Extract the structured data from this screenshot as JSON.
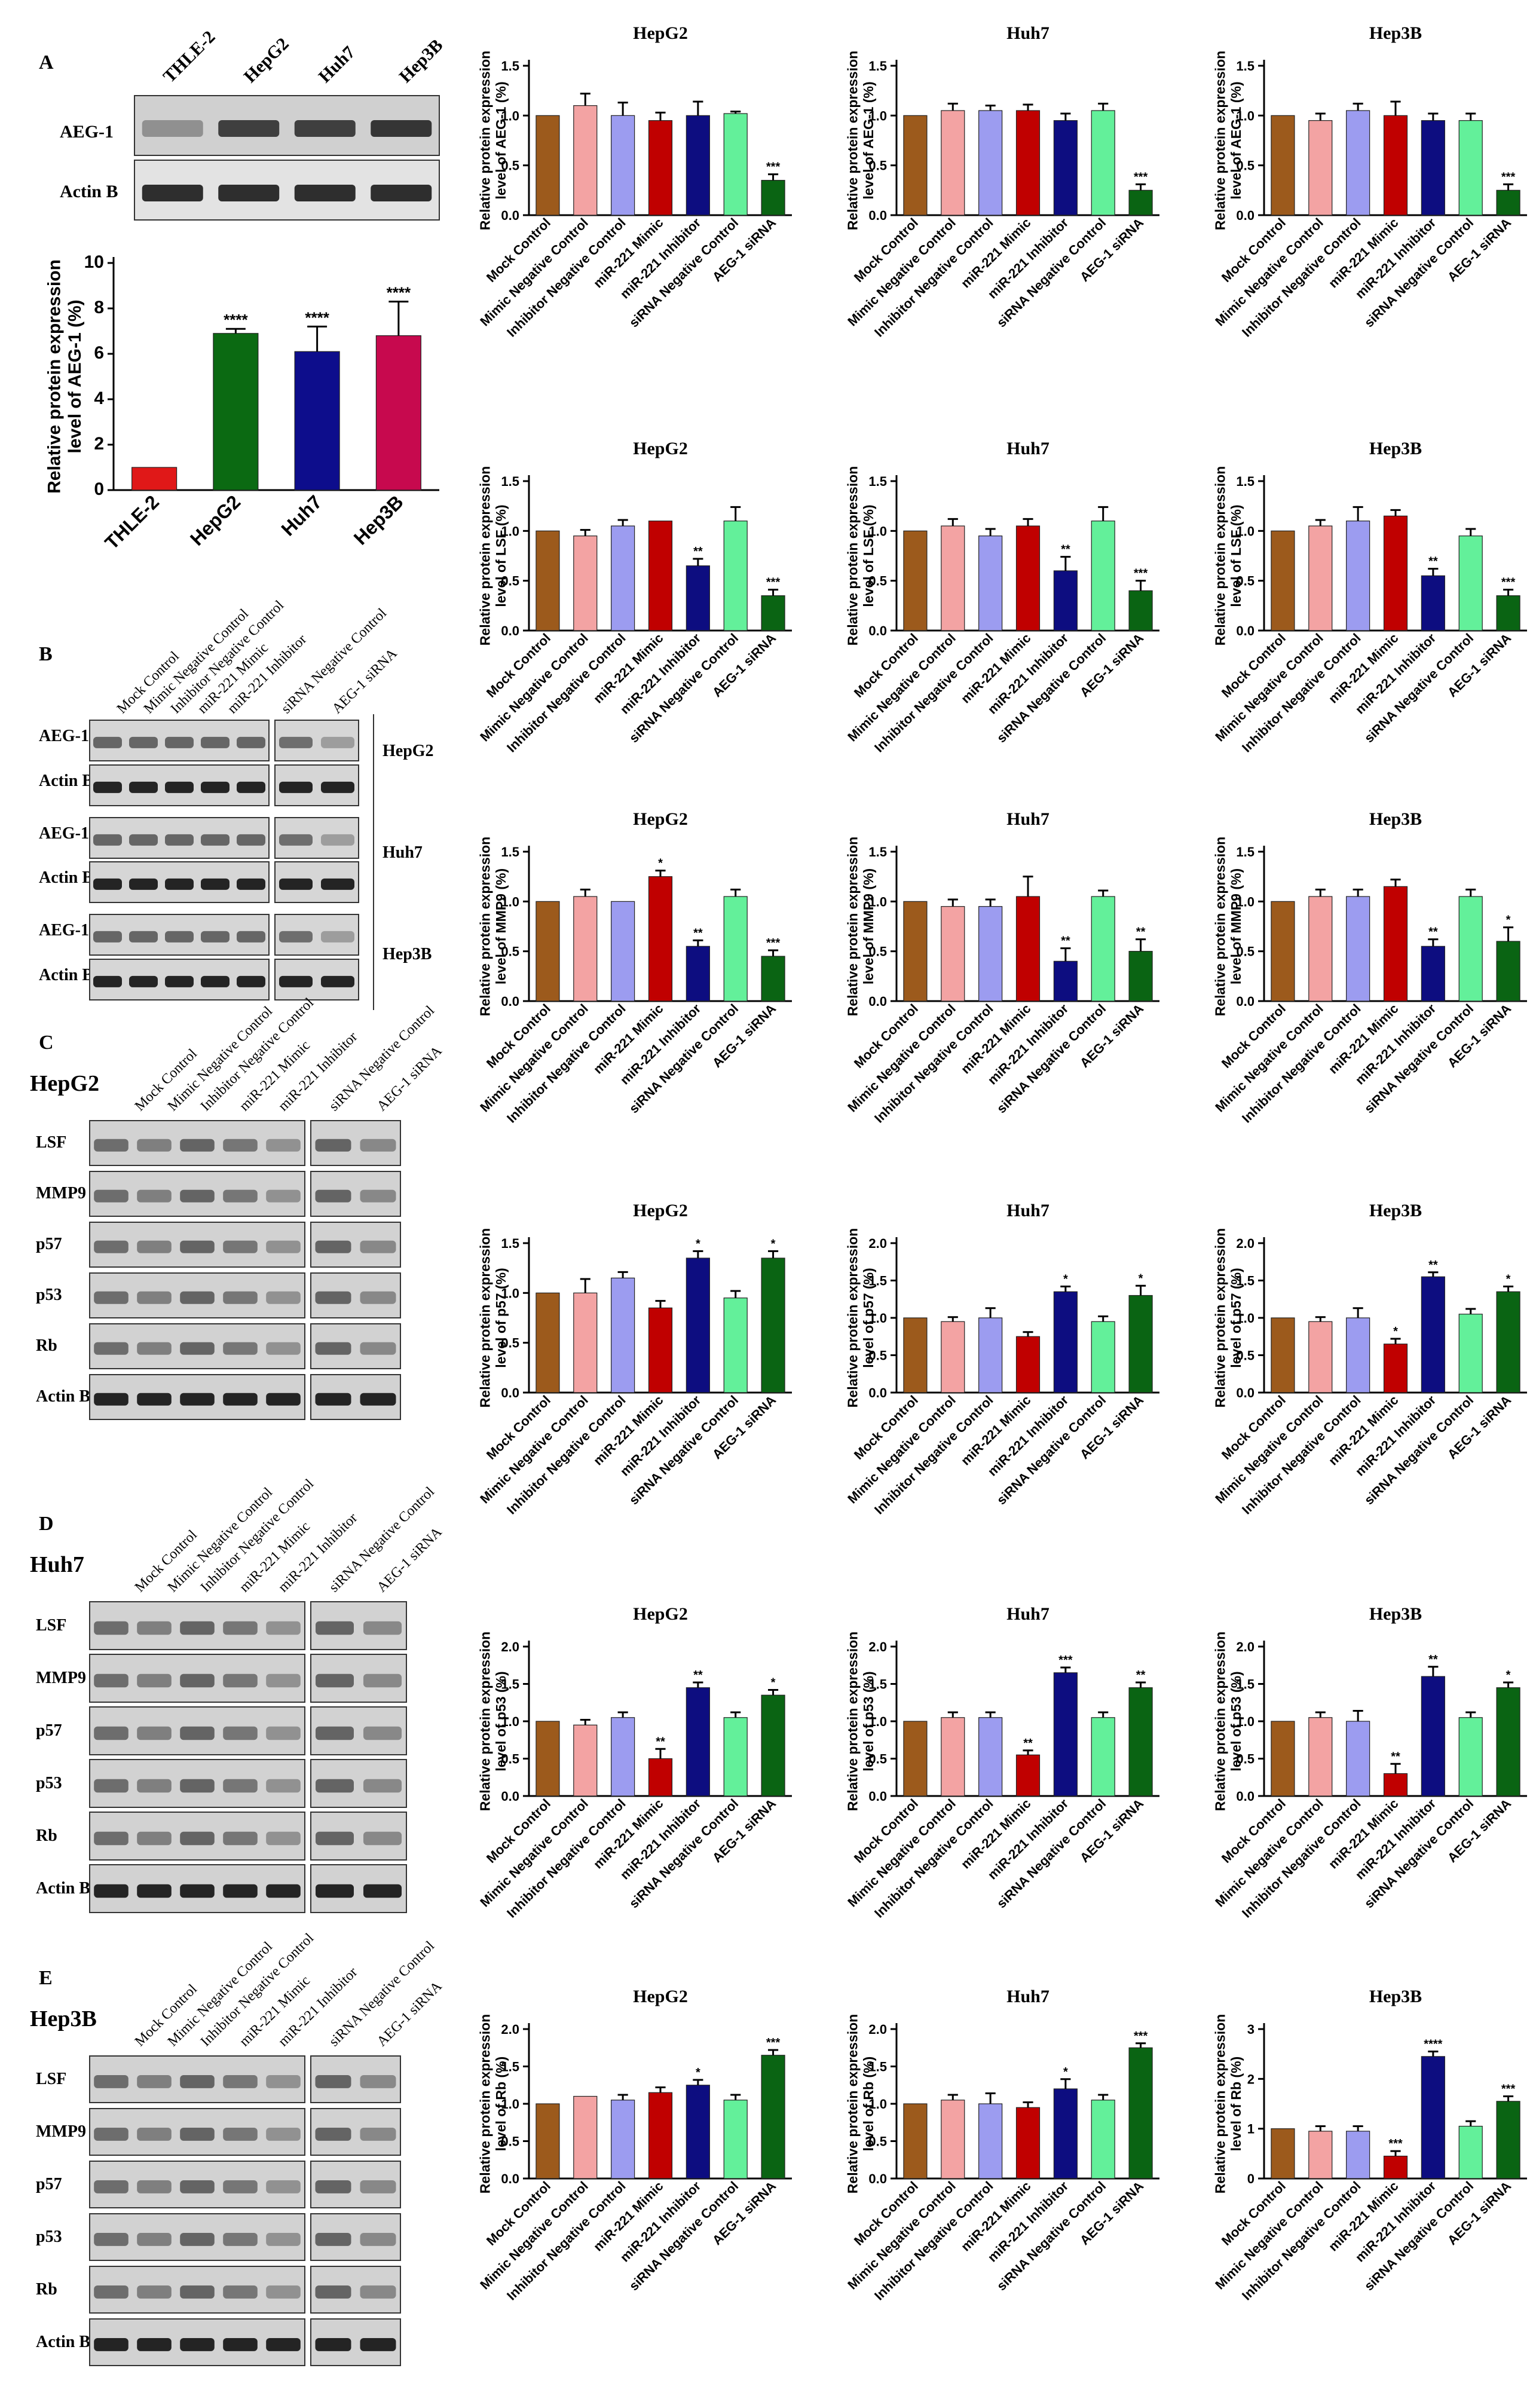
{
  "colors": {
    "mock": "#9c5a1c",
    "mimic_neg": "#f3a3a3",
    "inhib_neg": "#9c9cf0",
    "mimic": "#c00000",
    "inhibitor": "#0d0d80",
    "sirna_neg": "#63f09a",
    "sirna": "#0a6413",
    "thle2": "#e01818",
    "hepg2": "#0b6a12",
    "huh7": "#0d0d8c",
    "hep3b": "#c7094e"
  },
  "panels": {
    "A": {
      "letter": "A",
      "lanes": [
        "THLE-2",
        "HepG2",
        "Huh7",
        "Hep3B"
      ],
      "rows": [
        "AEG-1",
        "Actin B"
      ]
    },
    "B": {
      "letter": "B",
      "lanes": [
        "Mock Control",
        "Mimic Negative Control",
        "Inhibitor Negative Control",
        "miR-221 Mimic",
        "miR-221 Inhibitor",
        "siRNA Negative Control",
        "AEG-1 siRNA"
      ],
      "rows": [
        "AEG-1",
        "Actin B",
        "AEG-1",
        "Actin B",
        "AEG-1",
        "Actin B"
      ],
      "cells": [
        "HepG2",
        "Huh7",
        "Hep3B"
      ]
    },
    "C": {
      "letter": "C",
      "cell": "HepG2",
      "lanes": [
        "Mock Control",
        "Mimic Negative Control",
        "Inhibitor Negative Control",
        "miR-221 Mimic",
        "miR-221 Inhibitor",
        "siRNA Negative Control",
        "AEG-1 siRNA"
      ],
      "rows": [
        "LSF",
        "MMP9",
        "p57",
        "p53",
        "Rb",
        "Actin B"
      ]
    },
    "D": {
      "letter": "D",
      "cell": "Huh7",
      "lanes": [
        "Mock Control",
        "Mimic Negative Control",
        "Inhibitor Negative Control",
        "miR-221 Mimic",
        "miR-221 Inhibitor",
        "siRNA Negative Control",
        "AEG-1 siRNA"
      ],
      "rows": [
        "LSF",
        "MMP9",
        "p57",
        "p53",
        "Rb",
        "Actin B"
      ]
    },
    "E": {
      "letter": "E",
      "cell": "Hep3B",
      "lanes": [
        "Mock Control",
        "Mimic Negative Control",
        "Inhibitor Negative Control",
        "miR-221 Mimic",
        "miR-221 Inhibitor",
        "siRNA Negative Control",
        "AEG-1 siRNA"
      ],
      "rows": [
        "LSF",
        "MMP9",
        "p57",
        "p53",
        "Rb",
        "Actin B"
      ]
    }
  },
  "chart_data": [
    {
      "type": "bar",
      "id": "cells-aeg1",
      "categories": [
        "THLE-2",
        "HepG2",
        "Huh7",
        "Hep3B"
      ],
      "values": [
        1.0,
        6.9,
        6.1,
        6.8
      ],
      "errors": [
        0,
        0.2,
        1.1,
        1.5
      ],
      "significance": [
        "",
        "****",
        "****",
        "****"
      ],
      "ylabel": "Relative protein expression level of AEG-1 (%)",
      "ylim": [
        0,
        10
      ],
      "yticks": [
        0,
        2,
        4,
        6,
        8,
        10
      ]
    },
    {
      "type": "bar",
      "id": "aeg1-hepg2",
      "title": "HepG2",
      "ylabel": "Relative protein expression level of AEG-1 (%)",
      "ylim": [
        0,
        1.5
      ],
      "yticks": [
        0.0,
        0.5,
        1.0,
        1.5
      ],
      "categories": [
        "Mock Control",
        "Mimic Negative Control",
        "Inhibitor Negative Control",
        "miR-221 Mimic",
        "miR-221 Inhibitor",
        "siRNA Negative Control",
        "AEG-1 siRNA"
      ],
      "values": [
        1.0,
        1.1,
        1.0,
        0.95,
        1.0,
        1.02,
        0.35
      ],
      "errors": [
        0,
        0.12,
        0.13,
        0.08,
        0.14,
        0.02,
        0.06
      ],
      "significance": [
        "",
        "",
        "",
        "",
        "",
        "",
        "***"
      ]
    },
    {
      "type": "bar",
      "id": "aeg1-huh7",
      "title": "Huh7",
      "ylabel": "Relative protein expression level of AEG-1 (%)",
      "ylim": [
        0,
        1.5
      ],
      "yticks": [
        0.0,
        0.5,
        1.0,
        1.5
      ],
      "categories": [
        "Mock Control",
        "Mimic Negative Control",
        "Inhibitor Negative Control",
        "miR-221 Mimic",
        "miR-221 Inhibitor",
        "siRNA Negative Control",
        "AEG-1 siRNA"
      ],
      "values": [
        1.0,
        1.05,
        1.05,
        1.05,
        0.95,
        1.05,
        0.25
      ],
      "errors": [
        0,
        0.07,
        0.05,
        0.06,
        0.07,
        0.07,
        0.06
      ],
      "significance": [
        "",
        "",
        "",
        "",
        "",
        "",
        "***"
      ]
    },
    {
      "type": "bar",
      "id": "aeg1-hep3b",
      "title": "Hep3B",
      "ylabel": "Relative protein expression level of AEG-1 (%)",
      "ylim": [
        0,
        1.5
      ],
      "yticks": [
        0.0,
        0.5,
        1.0,
        1.5
      ],
      "categories": [
        "Mock Control",
        "Mimic Negative Control",
        "Inhibitor Negative Control",
        "miR-221 Mimic",
        "miR-221 Inhibitor",
        "siRNA Negative Control",
        "AEG-1 siRNA"
      ],
      "values": [
        1.0,
        0.95,
        1.05,
        1.0,
        0.95,
        0.95,
        0.25
      ],
      "errors": [
        0,
        0.07,
        0.07,
        0.14,
        0.07,
        0.07,
        0.06
      ],
      "significance": [
        "",
        "",
        "",
        "",
        "",
        "",
        "***"
      ]
    },
    {
      "type": "bar",
      "id": "lsf-hepg2",
      "title": "HepG2",
      "ylabel": "Relative protein expression level of LSF (%)",
      "ylim": [
        0,
        1.5
      ],
      "yticks": [
        0.0,
        0.5,
        1.0,
        1.5
      ],
      "categories": [
        "Mock Control",
        "Mimic Negative Control",
        "Inhibitor Negative Control",
        "miR-221 Mimic",
        "miR-221 Inhibitor",
        "siRNA Negative Control",
        "AEG-1 siRNA"
      ],
      "values": [
        1.0,
        0.95,
        1.05,
        1.1,
        0.65,
        1.1,
        0.35
      ],
      "errors": [
        0,
        0.06,
        0.06,
        0,
        0.07,
        0.14,
        0.06
      ],
      "significance": [
        "",
        "",
        "",
        "",
        "**",
        "",
        "***"
      ]
    },
    {
      "type": "bar",
      "id": "lsf-huh7",
      "title": "Huh7",
      "ylabel": "Relative protein expression level of LSF (%)",
      "ylim": [
        0,
        1.5
      ],
      "yticks": [
        0.0,
        0.5,
        1.0,
        1.5
      ],
      "categories": [
        "Mock Control",
        "Mimic Negative Control",
        "Inhibitor Negative Control",
        "miR-221 Mimic",
        "miR-221 Inhibitor",
        "siRNA Negative Control",
        "AEG-1 siRNA"
      ],
      "values": [
        1.0,
        1.05,
        0.95,
        1.05,
        0.6,
        1.1,
        0.4
      ],
      "errors": [
        0,
        0.07,
        0.07,
        0.07,
        0.14,
        0.14,
        0.1
      ],
      "significance": [
        "",
        "",
        "",
        "",
        "**",
        "",
        "***"
      ]
    },
    {
      "type": "bar",
      "id": "lsf-hep3b",
      "title": "Hep3B",
      "ylabel": "Relative protein expression level of LSF (%)",
      "ylim": [
        0,
        1.5
      ],
      "yticks": [
        0.0,
        0.5,
        1.0,
        1.5
      ],
      "categories": [
        "Mock Control",
        "Mimic Negative Control",
        "Inhibitor Negative Control",
        "miR-221 Mimic",
        "miR-221 Inhibitor",
        "siRNA Negative Control",
        "AEG-1 siRNA"
      ],
      "values": [
        1.0,
        1.05,
        1.1,
        1.15,
        0.55,
        0.95,
        0.35
      ],
      "errors": [
        0,
        0.06,
        0.14,
        0.06,
        0.07,
        0.07,
        0.06
      ],
      "significance": [
        "",
        "",
        "",
        "",
        "**",
        "",
        "***"
      ]
    },
    {
      "type": "bar",
      "id": "mmp9-hepg2",
      "title": "HepG2",
      "ylabel": "Relative protein expression level of MMP9 (%)",
      "ylim": [
        0,
        1.5
      ],
      "yticks": [
        0.0,
        0.5,
        1.0,
        1.5
      ],
      "categories": [
        "Mock Control",
        "Mimic Negative Control",
        "Inhibitor Negative Control",
        "miR-221 Mimic",
        "miR-221 Inhibitor",
        "siRNA Negative Control",
        "AEG-1 siRNA"
      ],
      "values": [
        1.0,
        1.05,
        1.0,
        1.25,
        0.55,
        1.05,
        0.45
      ],
      "errors": [
        0,
        0.07,
        0,
        0.06,
        0.06,
        0.07,
        0.06
      ],
      "significance": [
        "",
        "",
        "",
        "*",
        "**",
        "",
        "***"
      ]
    },
    {
      "type": "bar",
      "id": "mmp9-huh7",
      "title": "Huh7",
      "ylabel": "Relative protein expression level of MMP9 (%)",
      "ylim": [
        0,
        1.5
      ],
      "yticks": [
        0.0,
        0.5,
        1.0,
        1.5
      ],
      "categories": [
        "Mock Control",
        "Mimic Negative Control",
        "Inhibitor Negative Control",
        "miR-221 Mimic",
        "miR-221 Inhibitor",
        "siRNA Negative Control",
        "AEG-1 siRNA"
      ],
      "values": [
        1.0,
        0.95,
        0.95,
        1.05,
        0.4,
        1.05,
        0.5
      ],
      "errors": [
        0,
        0.07,
        0.07,
        0.2,
        0.13,
        0.06,
        0.12
      ],
      "significance": [
        "",
        "",
        "",
        "",
        "**",
        "",
        "**"
      ]
    },
    {
      "type": "bar",
      "id": "mmp9-hep3b",
      "title": "Hep3B",
      "ylabel": "Relative protein expression level of MMP9 (%)",
      "ylim": [
        0,
        1.5
      ],
      "yticks": [
        0.0,
        0.5,
        1.0,
        1.5
      ],
      "categories": [
        "Mock Control",
        "Mimic Negative Control",
        "Inhibitor Negative Control",
        "miR-221 Mimic",
        "miR-221 Inhibitor",
        "siRNA Negative Control",
        "AEG-1 siRNA"
      ],
      "values": [
        1.0,
        1.05,
        1.05,
        1.15,
        0.55,
        1.05,
        0.6
      ],
      "errors": [
        0,
        0.07,
        0.07,
        0.07,
        0.07,
        0.07,
        0.14
      ],
      "significance": [
        "",
        "",
        "",
        "",
        "**",
        "",
        "*"
      ]
    },
    {
      "type": "bar",
      "id": "p57-hepg2",
      "title": "HepG2",
      "ylabel": "Relative protein expression level of p57 (%)",
      "ylim": [
        0,
        1.5
      ],
      "yticks": [
        0.0,
        0.5,
        1.0,
        1.5
      ],
      "categories": [
        "Mock Control",
        "Mimic Negative Control",
        "Inhibitor Negative Control",
        "miR-221 Mimic",
        "miR-221 Inhibitor",
        "siRNA Negative Control",
        "AEG-1 siRNA"
      ],
      "values": [
        1.0,
        1.0,
        1.15,
        0.85,
        1.35,
        0.95,
        1.35
      ],
      "errors": [
        0,
        0.14,
        0.06,
        0.07,
        0.07,
        0.07,
        0.07
      ],
      "significance": [
        "",
        "",
        "",
        "",
        "*",
        "",
        "*"
      ]
    },
    {
      "type": "bar",
      "id": "p57-huh7",
      "title": "Huh7",
      "ylabel": "Relative protein expression level of p57 (%)",
      "ylim": [
        0,
        2.0
      ],
      "yticks": [
        0.0,
        0.5,
        1.0,
        1.5,
        2.0
      ],
      "categories": [
        "Mock Control",
        "Mimic Negative Control",
        "Inhibitor Negative Control",
        "miR-221 Mimic",
        "miR-221 Inhibitor",
        "siRNA Negative Control",
        "AEG-1 siRNA"
      ],
      "values": [
        1.0,
        0.95,
        1.0,
        0.75,
        1.35,
        0.95,
        1.3
      ],
      "errors": [
        0,
        0.06,
        0.13,
        0.06,
        0.07,
        0.07,
        0.13
      ],
      "significance": [
        "",
        "",
        "",
        "",
        "*",
        "",
        "*"
      ]
    },
    {
      "type": "bar",
      "id": "p57-hep3b",
      "title": "Hep3B",
      "ylabel": "Relative protein expression level of p57 (%)",
      "ylim": [
        0,
        2.0
      ],
      "yticks": [
        0.0,
        0.5,
        1.0,
        1.5,
        2.0
      ],
      "categories": [
        "Mock Control",
        "Mimic Negative Control",
        "Inhibitor Negative Control",
        "miR-221 Mimic",
        "miR-221 Inhibitor",
        "siRNA Negative Control",
        "AEG-1 siRNA"
      ],
      "values": [
        1.0,
        0.95,
        1.0,
        0.65,
        1.55,
        1.05,
        1.35
      ],
      "errors": [
        0,
        0.06,
        0.13,
        0.07,
        0.06,
        0.07,
        0.07
      ],
      "significance": [
        "",
        "",
        "",
        "*",
        "**",
        "",
        "*"
      ]
    },
    {
      "type": "bar",
      "id": "p53-hepg2",
      "title": "HepG2",
      "ylabel": "Relative protein expression level of p53 (%)",
      "ylim": [
        0,
        2.0
      ],
      "yticks": [
        0.0,
        0.5,
        1.0,
        1.5,
        2.0
      ],
      "categories": [
        "Mock Control",
        "Mimic Negative Control",
        "Inhibitor Negative Control",
        "miR-221 Mimic",
        "miR-221 Inhibitor",
        "siRNA Negative Control",
        "AEG-1 siRNA"
      ],
      "values": [
        1.0,
        0.95,
        1.05,
        0.5,
        1.45,
        1.05,
        1.35
      ],
      "errors": [
        0,
        0.07,
        0.07,
        0.13,
        0.07,
        0.07,
        0.07
      ],
      "significance": [
        "",
        "",
        "",
        "**",
        "**",
        "",
        "*"
      ]
    },
    {
      "type": "bar",
      "id": "p53-huh7",
      "title": "Huh7",
      "ylabel": "Relative protein expression level of p53 (%)",
      "ylim": [
        0,
        2.0
      ],
      "yticks": [
        0.0,
        0.5,
        1.0,
        1.5,
        2.0
      ],
      "categories": [
        "Mock Control",
        "Mimic Negative Control",
        "Inhibitor Negative Control",
        "miR-221 Mimic",
        "miR-221 Inhibitor",
        "siRNA Negative Control",
        "AEG-1 siRNA"
      ],
      "values": [
        1.0,
        1.05,
        1.05,
        0.55,
        1.65,
        1.05,
        1.45
      ],
      "errors": [
        0,
        0.07,
        0.07,
        0.06,
        0.07,
        0.07,
        0.07
      ],
      "significance": [
        "",
        "",
        "",
        "**",
        "***",
        "",
        "**"
      ]
    },
    {
      "type": "bar",
      "id": "p53-hep3b",
      "title": "Hep3B",
      "ylabel": "Relative protein expression level of p53 (%)",
      "ylim": [
        0,
        2.0
      ],
      "yticks": [
        0.0,
        0.5,
        1.0,
        1.5,
        2.0
      ],
      "categories": [
        "Mock Control",
        "Mimic Negative Control",
        "Inhibitor Negative Control",
        "miR-221 Mimic",
        "miR-221 Inhibitor",
        "siRNA Negative Control",
        "AEG-1 siRNA"
      ],
      "values": [
        1.0,
        1.05,
        1.0,
        0.3,
        1.6,
        1.05,
        1.45
      ],
      "errors": [
        0,
        0.07,
        0.14,
        0.13,
        0.13,
        0.07,
        0.07
      ],
      "significance": [
        "",
        "",
        "",
        "**",
        "**",
        "",
        "*"
      ]
    },
    {
      "type": "bar",
      "id": "rb-hepg2",
      "title": "HepG2",
      "ylabel": "Relative protein expression level of Rb (%)",
      "ylim": [
        0,
        2.0
      ],
      "yticks": [
        0.0,
        0.5,
        1.0,
        1.5,
        2.0
      ],
      "categories": [
        "Mock Control",
        "Mimic Negative Control",
        "Inhibitor Negative Control",
        "miR-221 Mimic",
        "miR-221 Inhibitor",
        "siRNA Negative Control",
        "AEG-1 siRNA"
      ],
      "values": [
        1.0,
        1.1,
        1.05,
        1.15,
        1.25,
        1.05,
        1.65
      ],
      "errors": [
        0,
        0,
        0.07,
        0.07,
        0.07,
        0.07,
        0.07
      ],
      "significance": [
        "",
        "",
        "",
        "",
        "*",
        "",
        "***"
      ]
    },
    {
      "type": "bar",
      "id": "rb-huh7",
      "title": "Huh7",
      "ylabel": "Relative protein expression level of Rb (%)",
      "ylim": [
        0,
        2.0
      ],
      "yticks": [
        0.0,
        0.5,
        1.0,
        1.5,
        2.0
      ],
      "categories": [
        "Mock Control",
        "Mimic Negative Control",
        "Inhibitor Negative Control",
        "miR-221 Mimic",
        "miR-221 Inhibitor",
        "siRNA Negative Control",
        "AEG-1 siRNA"
      ],
      "values": [
        1.0,
        1.05,
        1.0,
        0.95,
        1.2,
        1.05,
        1.75
      ],
      "errors": [
        0,
        0.07,
        0.14,
        0.07,
        0.13,
        0.07,
        0.06
      ],
      "significance": [
        "",
        "",
        "",
        "",
        "*",
        "",
        "***"
      ]
    },
    {
      "type": "bar",
      "id": "rb-hep3b",
      "title": "Hep3B",
      "ylabel": "Relative protein expression level of Rb (%)",
      "ylim": [
        0,
        3
      ],
      "yticks": [
        0,
        1,
        2,
        3
      ],
      "categories": [
        "Mock Control",
        "Mimic Negative Control",
        "Inhibitor Negative Control",
        "miR-221 Mimic",
        "miR-221 Inhibitor",
        "siRNA Negative Control",
        "AEG-1 siRNA"
      ],
      "values": [
        1.0,
        0.95,
        0.95,
        0.45,
        2.45,
        1.05,
        1.55
      ],
      "errors": [
        0,
        0.1,
        0.1,
        0.1,
        0.1,
        0.1,
        0.1
      ],
      "significance": [
        "",
        "",
        "",
        "***",
        "****",
        "",
        "***"
      ]
    }
  ]
}
